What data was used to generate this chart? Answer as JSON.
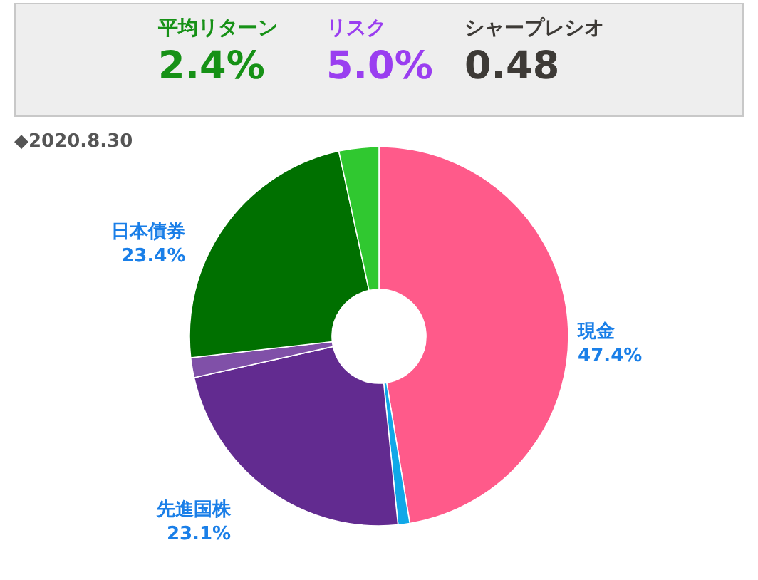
{
  "chart_data": {
    "type": "donut",
    "subtitle": "◆2020.8.30",
    "annotations": [
      "平均リターン",
      "2.4%",
      "リスク",
      "5.0%",
      "シャープレシオ",
      "0.48"
    ],
    "categories": [
      "現金",
      null,
      "先進国株",
      null,
      "日本債券",
      null
    ],
    "values": [
      47.4,
      1.0,
      23.1,
      1.7,
      23.4,
      3.4
    ],
    "value_labels": [
      "47.4%",
      null,
      "23.1%",
      null,
      "23.4%",
      null
    ],
    "colors": [
      "#ff5a8a",
      "#10a8e8",
      "#622b90",
      "#8050a8",
      "#007000",
      "#30c830"
    ]
  }
}
